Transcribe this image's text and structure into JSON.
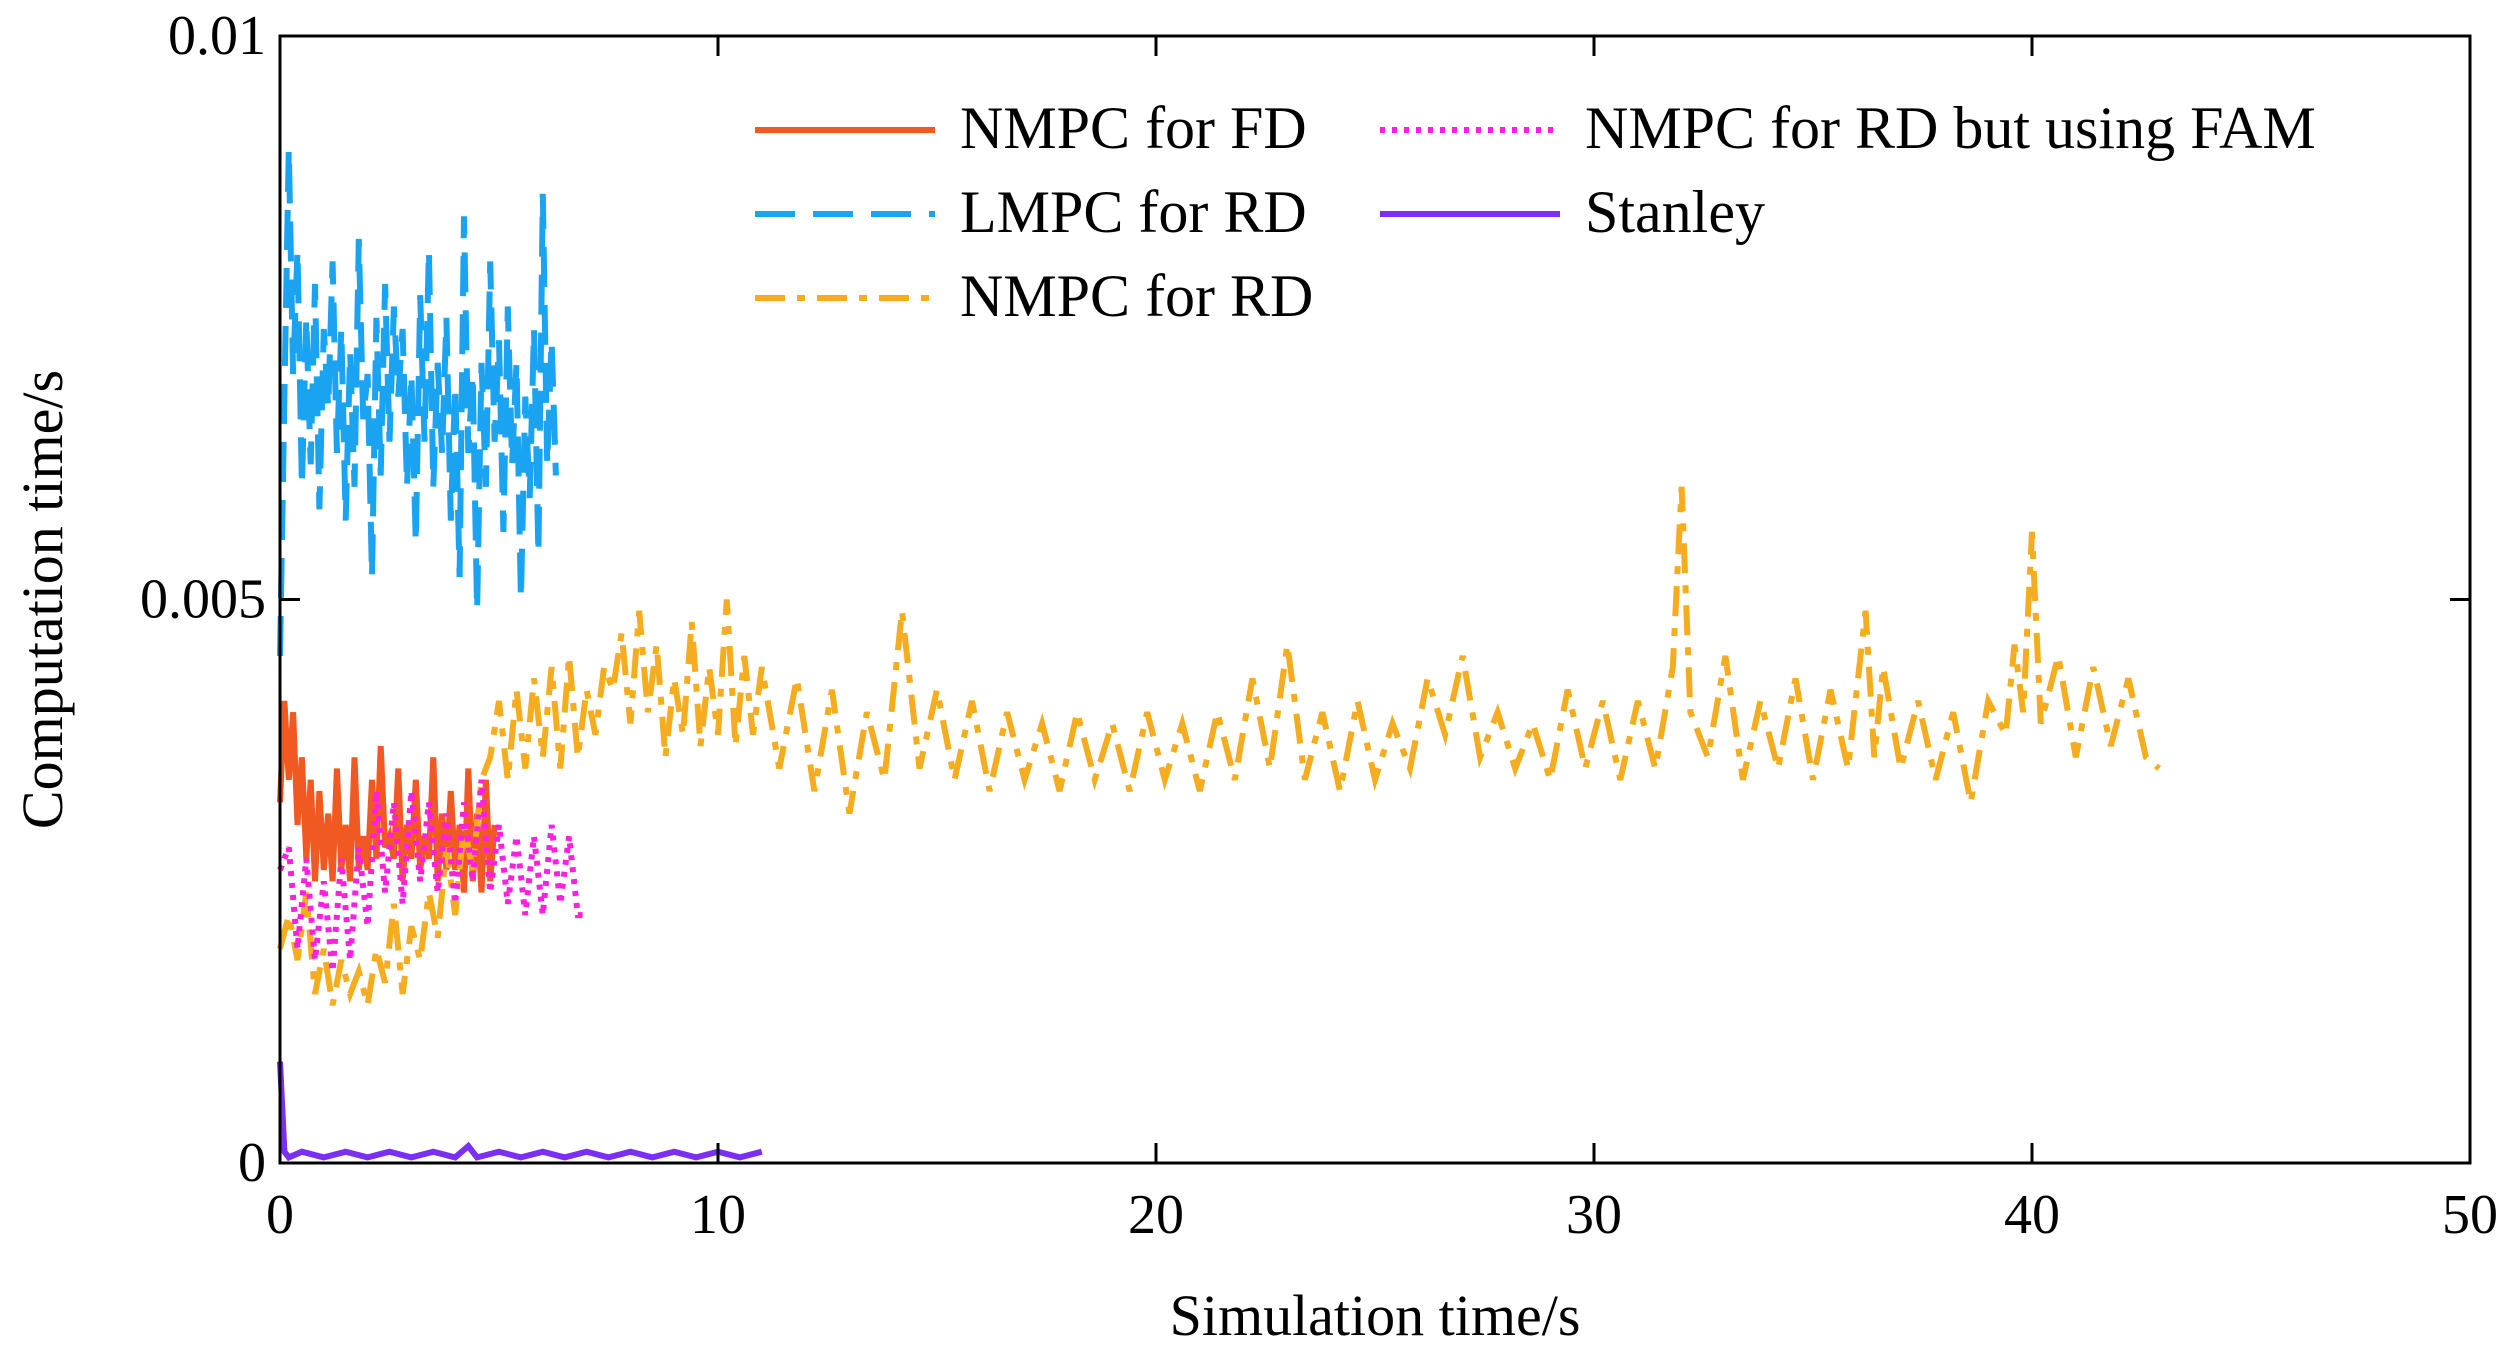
{
  "chart_data": {
    "type": "line",
    "title": "",
    "xlabel": "Simulation time/s",
    "ylabel": "Computation time/s",
    "xlim": [
      0,
      50
    ],
    "ylim": [
      0,
      0.01
    ],
    "xticks": [
      0,
      10,
      20,
      30,
      40,
      50
    ],
    "xtick_labels": [
      "0",
      "10",
      "20",
      "30",
      "40",
      "50"
    ],
    "yticks": [
      0,
      0.005,
      0.01
    ],
    "ytick_labels": [
      "0",
      "0.005",
      "0.01"
    ],
    "grid": false,
    "legend_position": "top-right",
    "series": [
      {
        "name": "NMPC for FD",
        "color": "#f05a22",
        "style": "solid",
        "x": [
          0,
          0.1,
          0.2,
          0.3,
          0.4,
          0.5,
          0.6,
          0.7,
          0.8,
          0.9,
          1.0,
          1.1,
          1.2,
          1.3,
          1.4,
          1.5,
          1.6,
          1.7,
          1.8,
          1.9,
          2.0,
          2.1,
          2.2,
          2.3,
          2.4,
          2.5,
          2.6,
          2.7,
          2.8,
          2.9,
          3.0,
          3.1,
          3.2,
          3.3,
          3.4,
          3.5,
          3.6,
          3.7,
          3.8,
          3.9,
          4.0,
          4.1,
          4.2,
          4.3,
          4.4,
          4.5,
          4.6,
          4.7,
          4.8,
          4.9
        ],
        "y": [
          0.0032,
          0.0041,
          0.0034,
          0.004,
          0.003,
          0.0036,
          0.0027,
          0.0034,
          0.0025,
          0.0033,
          0.0026,
          0.0031,
          0.0025,
          0.0035,
          0.0026,
          0.003,
          0.0025,
          0.0036,
          0.0026,
          0.0029,
          0.0026,
          0.0034,
          0.0027,
          0.0037,
          0.0028,
          0.0029,
          0.0027,
          0.0035,
          0.0025,
          0.003,
          0.0027,
          0.0034,
          0.0026,
          0.0029,
          0.0027,
          0.0036,
          0.0025,
          0.0031,
          0.0026,
          0.0033,
          0.0026,
          0.003,
          0.0024,
          0.0035,
          0.0025,
          0.0031,
          0.0024,
          0.0034,
          0.0025,
          0.003
        ]
      },
      {
        "name": "LMPC for RD",
        "color": "#1aa3f0",
        "style": "dashed",
        "x": [
          0,
          0.1,
          0.2,
          0.3,
          0.4,
          0.5,
          0.6,
          0.7,
          0.8,
          0.9,
          1.0,
          1.1,
          1.2,
          1.3,
          1.4,
          1.5,
          1.6,
          1.7,
          1.8,
          1.9,
          2.0,
          2.1,
          2.2,
          2.3,
          2.4,
          2.5,
          2.6,
          2.7,
          2.8,
          2.9,
          3.0,
          3.1,
          3.2,
          3.3,
          3.4,
          3.5,
          3.6,
          3.7,
          3.8,
          3.9,
          4.0,
          4.1,
          4.2,
          4.3,
          4.4,
          4.5,
          4.6,
          4.7,
          4.8,
          4.9,
          5.0,
          5.1,
          5.2,
          5.3,
          5.4,
          5.5,
          5.6,
          5.7,
          5.8,
          5.9,
          6.0,
          6.1,
          6.2,
          6.3
        ],
        "y": [
          0.0045,
          0.0068,
          0.009,
          0.007,
          0.0081,
          0.006,
          0.0075,
          0.0062,
          0.0078,
          0.0058,
          0.0074,
          0.0067,
          0.008,
          0.0063,
          0.0074,
          0.0057,
          0.0072,
          0.006,
          0.0082,
          0.0066,
          0.007,
          0.0052,
          0.0075,
          0.0061,
          0.0078,
          0.0064,
          0.0076,
          0.0068,
          0.0074,
          0.006,
          0.007,
          0.0055,
          0.0077,
          0.0064,
          0.0081,
          0.006,
          0.0071,
          0.0063,
          0.0075,
          0.0057,
          0.0069,
          0.0052,
          0.0084,
          0.0063,
          0.007,
          0.0049,
          0.0071,
          0.006,
          0.008,
          0.0064,
          0.0073,
          0.0056,
          0.0076,
          0.0062,
          0.0071,
          0.005,
          0.0068,
          0.0059,
          0.0074,
          0.0054,
          0.0086,
          0.0062,
          0.0073,
          0.0061
        ]
      },
      {
        "name": "NMPC for RD",
        "color": "#f5ac1e",
        "style": "dashdot",
        "x": [
          0,
          0.2,
          0.4,
          0.6,
          0.8,
          1.0,
          1.2,
          1.4,
          1.6,
          1.8,
          2.0,
          2.2,
          2.4,
          2.6,
          2.8,
          3.0,
          3.2,
          3.4,
          3.6,
          3.8,
          4.0,
          4.2,
          4.4,
          4.6,
          4.8,
          5.0,
          5.2,
          5.4,
          5.6,
          5.8,
          6.0,
          6.2,
          6.4,
          6.6,
          6.8,
          7.0,
          7.2,
          7.4,
          7.6,
          7.8,
          8.0,
          8.2,
          8.4,
          8.6,
          8.8,
          9.0,
          9.2,
          9.4,
          9.6,
          9.8,
          10.0,
          10.2,
          10.4,
          10.6,
          10.8,
          11.0,
          11.4,
          11.8,
          12.2,
          12.6,
          13.0,
          13.4,
          13.8,
          14.2,
          14.6,
          15.0,
          15.4,
          15.8,
          16.2,
          16.6,
          17.0,
          17.4,
          17.8,
          18.2,
          18.6,
          19.0,
          19.4,
          19.8,
          20.2,
          20.6,
          21.0,
          21.4,
          21.8,
          22.2,
          22.6,
          23.0,
          23.4,
          23.8,
          24.2,
          24.6,
          25.0,
          25.4,
          25.8,
          26.2,
          26.6,
          27.0,
          27.4,
          27.8,
          28.2,
          28.6,
          29.0,
          29.4,
          29.8,
          30.2,
          30.6,
          31.0,
          31.4,
          31.8,
          32.0,
          32.2,
          32.6,
          33.0,
          33.4,
          33.8,
          34.2,
          34.6,
          35.0,
          35.4,
          35.8,
          36.2,
          36.4,
          36.6,
          37.0,
          37.4,
          37.8,
          38.2,
          38.6,
          39.0,
          39.4,
          39.6,
          39.8,
          40.0,
          40.2,
          40.6,
          41.0,
          41.4,
          41.8,
          42.2,
          42.6,
          42.9
        ],
        "y": [
          0.0019,
          0.0022,
          0.0018,
          0.0024,
          0.0015,
          0.0019,
          0.0014,
          0.0018,
          0.0015,
          0.0017,
          0.0014,
          0.0019,
          0.0016,
          0.0023,
          0.0015,
          0.0021,
          0.0018,
          0.0024,
          0.002,
          0.0028,
          0.0022,
          0.003,
          0.0026,
          0.0034,
          0.0036,
          0.0041,
          0.0034,
          0.0042,
          0.0035,
          0.0043,
          0.0036,
          0.0044,
          0.0035,
          0.0045,
          0.0036,
          0.0042,
          0.0038,
          0.0044,
          0.0042,
          0.0047,
          0.0039,
          0.0049,
          0.004,
          0.0046,
          0.0036,
          0.0043,
          0.0038,
          0.0048,
          0.0037,
          0.0044,
          0.0038,
          0.005,
          0.0037,
          0.0045,
          0.0038,
          0.0044,
          0.0035,
          0.0043,
          0.0033,
          0.0042,
          0.0031,
          0.004,
          0.0034,
          0.0049,
          0.0035,
          0.0042,
          0.0034,
          0.0041,
          0.0033,
          0.004,
          0.0034,
          0.0039,
          0.0033,
          0.004,
          0.0034,
          0.0039,
          0.0033,
          0.004,
          0.0034,
          0.0039,
          0.0033,
          0.004,
          0.0034,
          0.0043,
          0.0035,
          0.0046,
          0.0034,
          0.004,
          0.0033,
          0.0041,
          0.0034,
          0.0039,
          0.0035,
          0.0043,
          0.0038,
          0.0045,
          0.0036,
          0.004,
          0.0035,
          0.0039,
          0.0034,
          0.0042,
          0.0035,
          0.0041,
          0.0034,
          0.0041,
          0.0035,
          0.0044,
          0.006,
          0.004,
          0.0036,
          0.0045,
          0.0034,
          0.0041,
          0.0035,
          0.0043,
          0.0034,
          0.0042,
          0.0035,
          0.0049,
          0.0036,
          0.0044,
          0.0035,
          0.0041,
          0.0034,
          0.004,
          0.0032,
          0.0041,
          0.0038,
          0.0046,
          0.004,
          0.0056,
          0.0039,
          0.0045,
          0.0036,
          0.0044,
          0.0037,
          0.0043,
          0.0036,
          0.0035
        ]
      },
      {
        "name": "NMPC for RD but using FAM",
        "color": "#ff1fe0",
        "style": "dotted",
        "x": [
          0,
          0.2,
          0.4,
          0.6,
          0.8,
          1.0,
          1.2,
          1.4,
          1.6,
          1.8,
          2.0,
          2.2,
          2.4,
          2.6,
          2.8,
          3.0,
          3.2,
          3.4,
          3.6,
          3.8,
          4.0,
          4.2,
          4.4,
          4.6,
          4.8,
          5.0,
          5.2,
          5.4,
          5.6,
          5.8,
          6.0,
          6.2,
          6.4,
          6.6,
          6.8,
          7.0
        ],
        "y": [
          0.0026,
          0.0028,
          0.0019,
          0.0027,
          0.0018,
          0.0025,
          0.0017,
          0.0027,
          0.0018,
          0.0028,
          0.0021,
          0.0033,
          0.0024,
          0.0032,
          0.0023,
          0.0033,
          0.0025,
          0.0032,
          0.0024,
          0.0031,
          0.0023,
          0.0032,
          0.0025,
          0.0034,
          0.0024,
          0.003,
          0.0023,
          0.0029,
          0.0022,
          0.0029,
          0.0022,
          0.003,
          0.0023,
          0.0029,
          0.0022,
          0.0022
        ]
      },
      {
        "name": "Stanley",
        "color": "#7b2ff2",
        "style": "solid",
        "x": [
          0,
          0.1,
          0.2,
          0.5,
          1.0,
          1.5,
          2.0,
          2.5,
          3.0,
          3.5,
          4.0,
          4.3,
          4.5,
          5.0,
          5.5,
          6.0,
          6.5,
          7.0,
          7.5,
          8.0,
          8.5,
          9.0,
          9.5,
          10.0,
          10.5,
          11.0
        ],
        "y": [
          0.0009,
          0.0001,
          5e-05,
          0.0001,
          5e-05,
          0.0001,
          5e-05,
          0.0001,
          5e-05,
          0.0001,
          5e-05,
          0.00015,
          5e-05,
          0.0001,
          5e-05,
          0.0001,
          5e-05,
          0.0001,
          5e-05,
          0.0001,
          5e-05,
          0.0001,
          5e-05,
          0.0001,
          5e-05,
          0.0001
        ]
      }
    ]
  }
}
